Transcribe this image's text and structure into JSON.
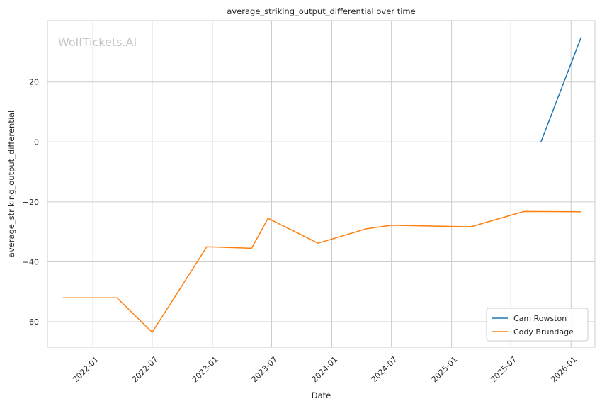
{
  "chart_data": {
    "type": "line",
    "title": "average_striking_output_differential over time",
    "xlabel": "Date",
    "ylabel": "average_striking_output_differential",
    "watermark": "WolfTickets.AI",
    "x_tick_labels": [
      "2022-01",
      "2022-07",
      "2023-01",
      "2023-07",
      "2024-01",
      "2024-07",
      "2025-01",
      "2025-07",
      "2026-01"
    ],
    "x_ticks": [
      "2022-01-01",
      "2022-07-01",
      "2023-01-01",
      "2023-07-01",
      "2024-01-01",
      "2024-07-01",
      "2025-01-01",
      "2025-07-01",
      "2026-01-01"
    ],
    "y_ticks": [
      -60,
      -40,
      -20,
      0,
      20
    ],
    "xlim": [
      "2021-08-15",
      "2026-03-15"
    ],
    "ylim": [
      -68.5,
      40.5
    ],
    "grid": true,
    "legend_position": "lower-right",
    "series": [
      {
        "name": "Cam Rowston",
        "color": "#1f77b4",
        "points": [
          {
            "x": "2025-10-01",
            "y": 0
          },
          {
            "x": "2026-02-01",
            "y": 35
          }
        ]
      },
      {
        "name": "Cody Brundage",
        "color": "#ff7f0e",
        "points": [
          {
            "x": "2021-10-01",
            "y": -52
          },
          {
            "x": "2022-03-15",
            "y": -52
          },
          {
            "x": "2022-07-01",
            "y": -63.5
          },
          {
            "x": "2022-12-15",
            "y": -35
          },
          {
            "x": "2023-05-01",
            "y": -35.5
          },
          {
            "x": "2023-06-20",
            "y": -25.5
          },
          {
            "x": "2023-11-20",
            "y": -33.8
          },
          {
            "x": "2024-04-15",
            "y": -29
          },
          {
            "x": "2024-07-01",
            "y": -27.8
          },
          {
            "x": "2025-03-01",
            "y": -28.3
          },
          {
            "x": "2025-08-10",
            "y": -23.2
          },
          {
            "x": "2026-02-01",
            "y": -23.3
          }
        ]
      }
    ]
  }
}
